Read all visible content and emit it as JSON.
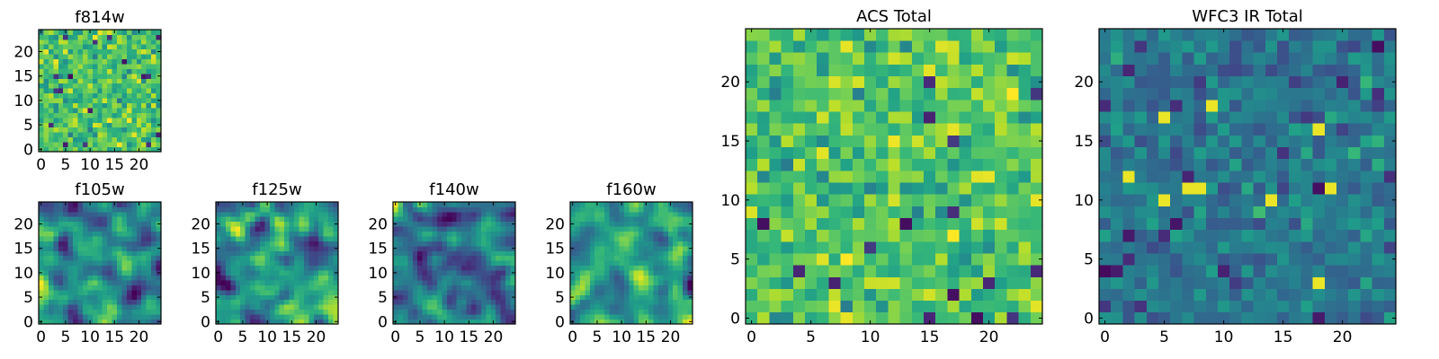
{
  "chart_data": [
    {
      "type": "heatmap",
      "title": "f814w",
      "colormap": "viridis",
      "grid_size": [
        25,
        25
      ],
      "xlim": [
        -0.5,
        24.5
      ],
      "ylim": [
        -0.5,
        24.5
      ],
      "xticks": [
        0,
        5,
        10,
        15,
        20
      ],
      "yticks": [
        0,
        5,
        10,
        15,
        20
      ],
      "xtick_labels": [
        "0",
        "5",
        "10",
        "15",
        "20"
      ],
      "ytick_labels": [
        "0",
        "5",
        "10",
        "15",
        "20"
      ],
      "pattern": "pixel-scale random noise, mostly green-yellow"
    },
    {
      "type": "heatmap",
      "title": "f105w",
      "colormap": "viridis",
      "grid_size": [
        25,
        25
      ],
      "xlim": [
        -0.5,
        24.5
      ],
      "ylim": [
        -0.5,
        24.5
      ],
      "xticks": [
        0,
        5,
        10,
        15,
        20
      ],
      "yticks": [
        0,
        5,
        10,
        15,
        20
      ],
      "xtick_labels": [
        "0",
        "5",
        "10",
        "15",
        "20"
      ],
      "ytick_labels": [
        "0",
        "5",
        "10",
        "15",
        "20"
      ],
      "pattern": "smoothed correlated noise"
    },
    {
      "type": "heatmap",
      "title": "f125w",
      "colormap": "viridis",
      "grid_size": [
        25,
        25
      ],
      "xlim": [
        -0.5,
        24.5
      ],
      "ylim": [
        -0.5,
        24.5
      ],
      "xticks": [
        0,
        5,
        10,
        15,
        20
      ],
      "yticks": [
        0,
        5,
        10,
        15,
        20
      ],
      "xtick_labels": [
        "0",
        "5",
        "10",
        "15",
        "20"
      ],
      "ytick_labels": [
        "0",
        "5",
        "10",
        "15",
        "20"
      ],
      "pattern": "smoothed correlated noise"
    },
    {
      "type": "heatmap",
      "title": "f140w",
      "colormap": "viridis",
      "grid_size": [
        25,
        25
      ],
      "xlim": [
        -0.5,
        24.5
      ],
      "ylim": [
        -0.5,
        24.5
      ],
      "xticks": [
        0,
        5,
        10,
        15,
        20
      ],
      "yticks": [
        0,
        5,
        10,
        15,
        20
      ],
      "xtick_labels": [
        "0",
        "5",
        "10",
        "15",
        "20"
      ],
      "ytick_labels": [
        "0",
        "5",
        "10",
        "15",
        "20"
      ],
      "pattern": "smoothed correlated noise"
    },
    {
      "type": "heatmap",
      "title": "f160w",
      "colormap": "viridis",
      "grid_size": [
        25,
        25
      ],
      "xlim": [
        -0.5,
        24.5
      ],
      "ylim": [
        -0.5,
        24.5
      ],
      "xticks": [
        0,
        5,
        10,
        15,
        20
      ],
      "yticks": [
        0,
        5,
        10,
        15,
        20
      ],
      "xtick_labels": [
        "0",
        "5",
        "10",
        "15",
        "20"
      ],
      "ytick_labels": [
        "0",
        "5",
        "10",
        "15",
        "20"
      ],
      "pattern": "smoothed correlated noise"
    },
    {
      "type": "heatmap",
      "title": "ACS Total",
      "colormap": "viridis",
      "grid_size": [
        25,
        25
      ],
      "xlim": [
        -0.5,
        24.5
      ],
      "ylim": [
        -0.5,
        24.5
      ],
      "xticks": [
        0,
        5,
        10,
        15,
        20
      ],
      "yticks": [
        0,
        5,
        10,
        15,
        20
      ],
      "xtick_labels": [
        "0",
        "5",
        "10",
        "15",
        "20"
      ],
      "ytick_labels": [
        "0",
        "5",
        "10",
        "15",
        "20"
      ],
      "pattern": "random noise, mostly green-yellow with a few dark pixels"
    },
    {
      "type": "heatmap",
      "title": "WFC3 IR Total",
      "colormap": "viridis",
      "grid_size": [
        25,
        25
      ],
      "xlim": [
        -0.5,
        24.5
      ],
      "ylim": [
        -0.5,
        24.5
      ],
      "xticks": [
        0,
        5,
        10,
        15,
        20
      ],
      "yticks": [
        0,
        5,
        10,
        15,
        20
      ],
      "xtick_labels": [
        "0",
        "5",
        "10",
        "15",
        "20"
      ],
      "ytick_labels": [
        "0",
        "5",
        "10",
        "15",
        "20"
      ],
      "pattern": "random noise, mostly blue-teal with a few bright yellow pixels"
    }
  ]
}
